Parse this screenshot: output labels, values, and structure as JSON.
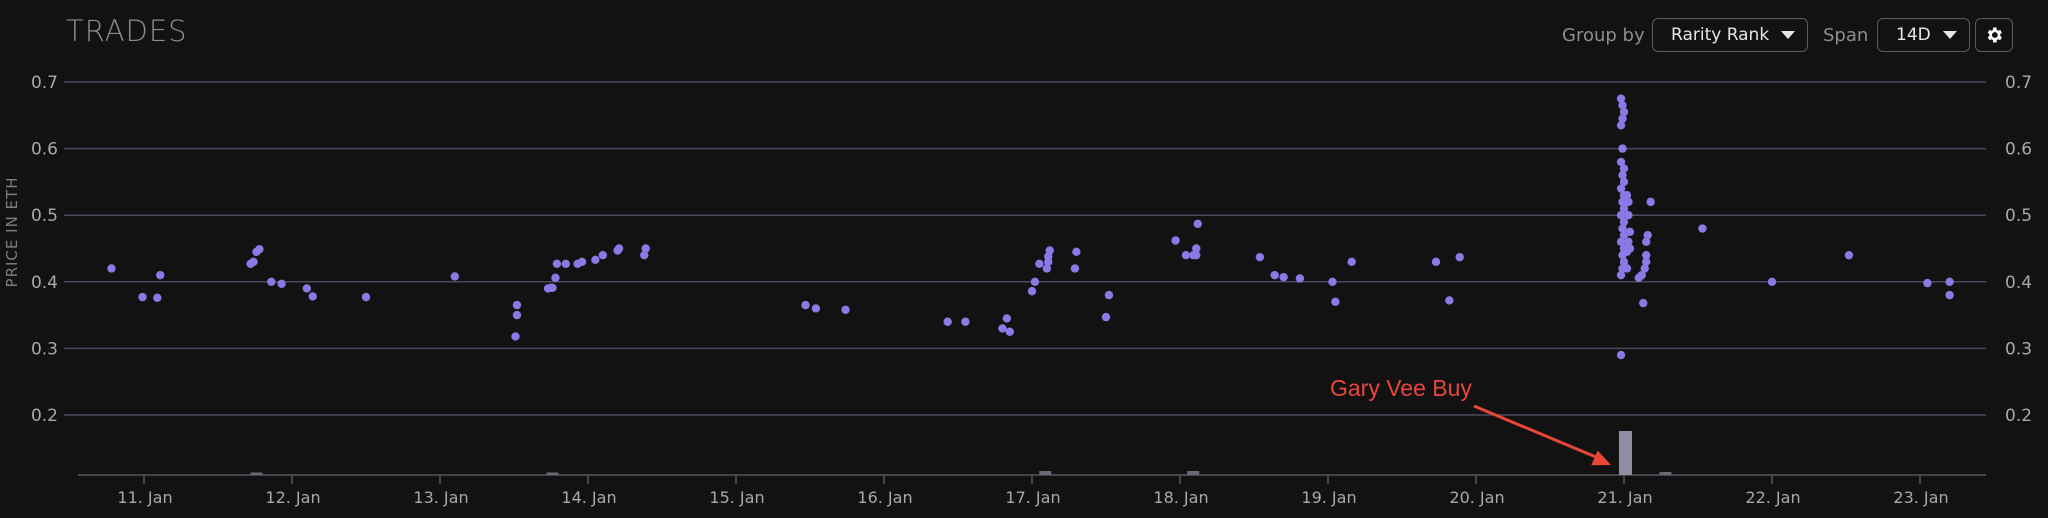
{
  "header": {
    "title": "TRADES",
    "group_by_label": "Group by",
    "group_by_value": "Rarity Rank",
    "span_label": "Span",
    "span_value": "14D",
    "settings_icon": "gear-icon"
  },
  "colors": {
    "background": "#121212",
    "point": "#8b79e6",
    "grid": "#4a4a5e",
    "volume_bar": "#8a8a96",
    "annotation": "#e8473a",
    "text": "#a9a9ad"
  },
  "chart_data": {
    "type": "scatter",
    "ylabel": "PRICE IN ETH",
    "ylim": [
      0.1,
      0.7
    ],
    "y_ticks": [
      0.2,
      0.3,
      0.4,
      0.5,
      0.6,
      0.7
    ],
    "y_tick_labels": [
      "0.2",
      "0.3",
      "0.4",
      "0.5",
      "0.6",
      "0.7"
    ],
    "grid": true,
    "x_unit": "days",
    "x_ticks": [
      11,
      12,
      13,
      14,
      15,
      16,
      17,
      18,
      19,
      20,
      21,
      22,
      23
    ],
    "x_tick_labels": [
      "11. Jan",
      "12. Jan",
      "13. Jan",
      "14. Jan",
      "15. Jan",
      "16. Jan",
      "17. Jan",
      "18. Jan",
      "19. Jan",
      "20. Jan",
      "21. Jan",
      "22. Jan",
      "23. Jan"
    ],
    "xlim": [
      10.55,
      23.5
    ],
    "points": [
      [
        10.78,
        0.42
      ],
      [
        10.99,
        0.377
      ],
      [
        11.09,
        0.376
      ],
      [
        11.11,
        0.41
      ],
      [
        11.72,
        0.427
      ],
      [
        11.74,
        0.43
      ],
      [
        11.76,
        0.445
      ],
      [
        11.78,
        0.449
      ],
      [
        11.86,
        0.4
      ],
      [
        11.93,
        0.397
      ],
      [
        12.1,
        0.39
      ],
      [
        12.14,
        0.378
      ],
      [
        12.5,
        0.377
      ],
      [
        13.1,
        0.408
      ],
      [
        13.51,
        0.318
      ],
      [
        13.52,
        0.35
      ],
      [
        13.52,
        0.365
      ],
      [
        13.73,
        0.39
      ],
      [
        13.75,
        0.391
      ],
      [
        13.76,
        0.391
      ],
      [
        13.78,
        0.406
      ],
      [
        13.79,
        0.427
      ],
      [
        13.85,
        0.427
      ],
      [
        13.93,
        0.427
      ],
      [
        13.96,
        0.43
      ],
      [
        14.05,
        0.433
      ],
      [
        14.1,
        0.44
      ],
      [
        14.2,
        0.447
      ],
      [
        14.21,
        0.45
      ],
      [
        14.38,
        0.44
      ],
      [
        14.39,
        0.45
      ],
      [
        15.47,
        0.365
      ],
      [
        15.54,
        0.36
      ],
      [
        15.74,
        0.358
      ],
      [
        16.43,
        0.34
      ],
      [
        16.55,
        0.34
      ],
      [
        16.8,
        0.33
      ],
      [
        16.83,
        0.345
      ],
      [
        16.85,
        0.325
      ],
      [
        17.0,
        0.386
      ],
      [
        17.02,
        0.4
      ],
      [
        17.05,
        0.427
      ],
      [
        17.1,
        0.42
      ],
      [
        17.11,
        0.43
      ],
      [
        17.11,
        0.438
      ],
      [
        17.12,
        0.447
      ],
      [
        17.29,
        0.42
      ],
      [
        17.3,
        0.445
      ],
      [
        17.5,
        0.347
      ],
      [
        17.52,
        0.38
      ],
      [
        17.97,
        0.462
      ],
      [
        18.04,
        0.44
      ],
      [
        18.09,
        0.44
      ],
      [
        18.11,
        0.44
      ],
      [
        18.11,
        0.45
      ],
      [
        18.12,
        0.487
      ],
      [
        18.54,
        0.437
      ],
      [
        18.64,
        0.41
      ],
      [
        18.7,
        0.407
      ],
      [
        18.81,
        0.405
      ],
      [
        19.03,
        0.4
      ],
      [
        19.05,
        0.37
      ],
      [
        19.16,
        0.43
      ],
      [
        19.73,
        0.43
      ],
      [
        19.82,
        0.372
      ],
      [
        19.89,
        0.437
      ],
      [
        20.98,
        0.29
      ],
      [
        20.98,
        0.41
      ],
      [
        20.99,
        0.42
      ],
      [
        21.0,
        0.43
      ],
      [
        20.99,
        0.44
      ],
      [
        21.0,
        0.45
      ],
      [
        20.98,
        0.46
      ],
      [
        21.0,
        0.47
      ],
      [
        20.99,
        0.48
      ],
      [
        21.0,
        0.49
      ],
      [
        20.98,
        0.5
      ],
      [
        21.0,
        0.51
      ],
      [
        20.99,
        0.52
      ],
      [
        21.0,
        0.53
      ],
      [
        20.98,
        0.54
      ],
      [
        21.0,
        0.55
      ],
      [
        20.99,
        0.56
      ],
      [
        21.0,
        0.57
      ],
      [
        20.98,
        0.58
      ],
      [
        20.99,
        0.6
      ],
      [
        20.98,
        0.635
      ],
      [
        20.99,
        0.645
      ],
      [
        21.0,
        0.655
      ],
      [
        20.99,
        0.665
      ],
      [
        20.98,
        0.675
      ],
      [
        21.02,
        0.445
      ],
      [
        21.03,
        0.52
      ],
      [
        21.02,
        0.53
      ],
      [
        21.03,
        0.5
      ],
      [
        21.04,
        0.475
      ],
      [
        21.03,
        0.46
      ],
      [
        21.04,
        0.45
      ],
      [
        21.02,
        0.42
      ],
      [
        21.1,
        0.406
      ],
      [
        21.12,
        0.41
      ],
      [
        21.14,
        0.42
      ],
      [
        21.15,
        0.43
      ],
      [
        21.15,
        0.44
      ],
      [
        21.15,
        0.46
      ],
      [
        21.16,
        0.47
      ],
      [
        21.13,
        0.368
      ],
      [
        21.18,
        0.52
      ],
      [
        21.53,
        0.48
      ],
      [
        22.0,
        0.4
      ],
      [
        22.52,
        0.44
      ],
      [
        23.05,
        0.398
      ],
      [
        23.2,
        0.4
      ],
      [
        23.2,
        0.38
      ]
    ],
    "volume_bars": [
      {
        "x": 11.76,
        "value": 1
      },
      {
        "x": 13.76,
        "value": 1
      },
      {
        "x": 17.09,
        "value": 2
      },
      {
        "x": 18.09,
        "value": 2
      },
      {
        "x": 21.01,
        "value": 22
      },
      {
        "x": 21.28,
        "value": 1.5
      }
    ],
    "annotations": [
      {
        "text": "Gary Vee Buy",
        "target_x": 20.98,
        "target_value": 1
      }
    ]
  }
}
